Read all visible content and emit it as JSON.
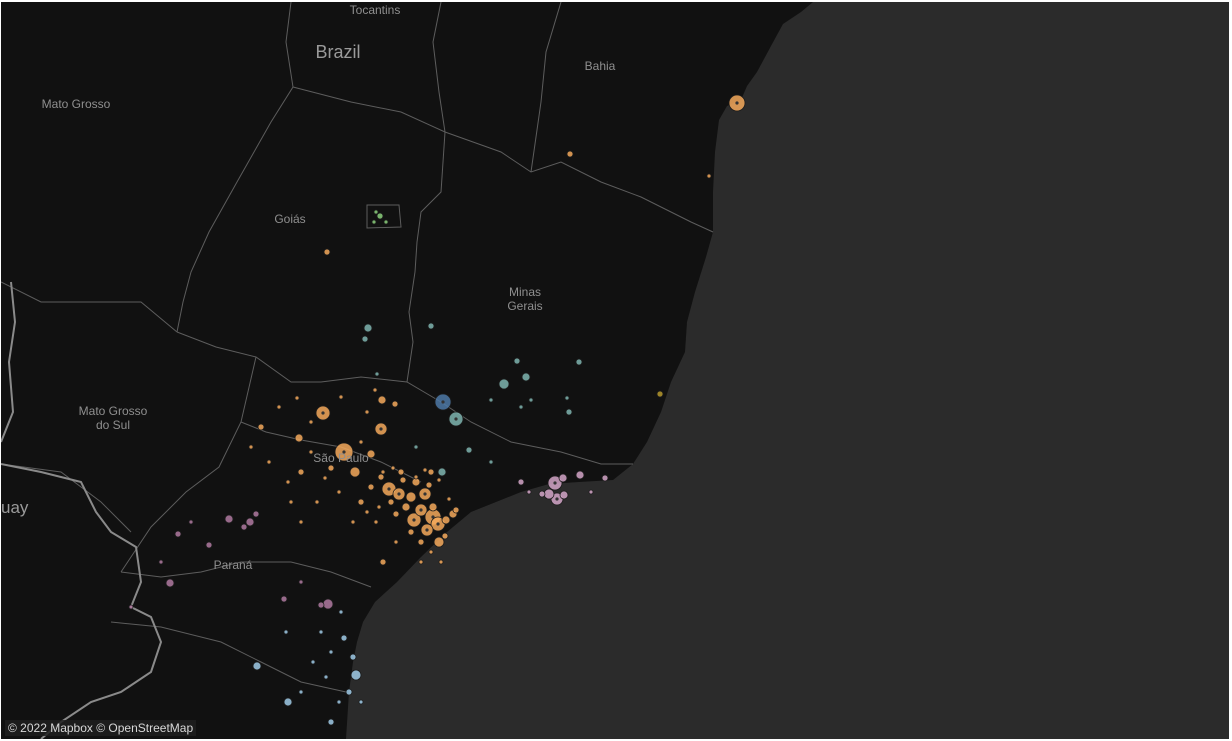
{
  "map": {
    "labels": {
      "tocantins": "Tocantins",
      "brazil": "Brazil",
      "bahia": "Bahia",
      "mato_grosso": "Mato Grosso",
      "goias": "Goiás",
      "minas_gerais": "Minas\nGerais",
      "mato_grosso_do_sul": "Mato Grosso\ndo Sul",
      "sao_paulo": "São Paulo",
      "parana": "Paraná",
      "paraguay_partial": "uay"
    },
    "attribution": "© 2022 Mapbox © OpenStreetMap",
    "colors": {
      "ocean": "#2b2b2b",
      "land": "#111111",
      "border": "#5d5d5d",
      "country_border": "#8a8a8a",
      "cluster_orange": "#f4a95c",
      "cluster_teal": "#7fb5b0",
      "cluster_blue": "#4e79a7",
      "cluster_pink": "#d4a6c8",
      "cluster_purple": "#b07aa1",
      "cluster_lightblue": "#a0cbe8",
      "cluster_green": "#8cd17d",
      "cluster_yellow": "#b6992d"
    },
    "marker_groups": [
      {
        "name": "orange",
        "color": "#f4a95c",
        "count": 74
      },
      {
        "name": "teal",
        "color": "#7fb5b0",
        "count": 18
      },
      {
        "name": "blue",
        "color": "#4e79a7",
        "count": 1
      },
      {
        "name": "pink",
        "color": "#d4a6c8",
        "count": 11
      },
      {
        "name": "purple",
        "color": "#b07aa1",
        "count": 14
      },
      {
        "name": "lightblue",
        "color": "#a0cbe8",
        "count": 16
      },
      {
        "name": "green",
        "color": "#8cd17d",
        "count": 4
      },
      {
        "name": "yellow",
        "color": "#b6992d",
        "count": 1
      }
    ]
  }
}
